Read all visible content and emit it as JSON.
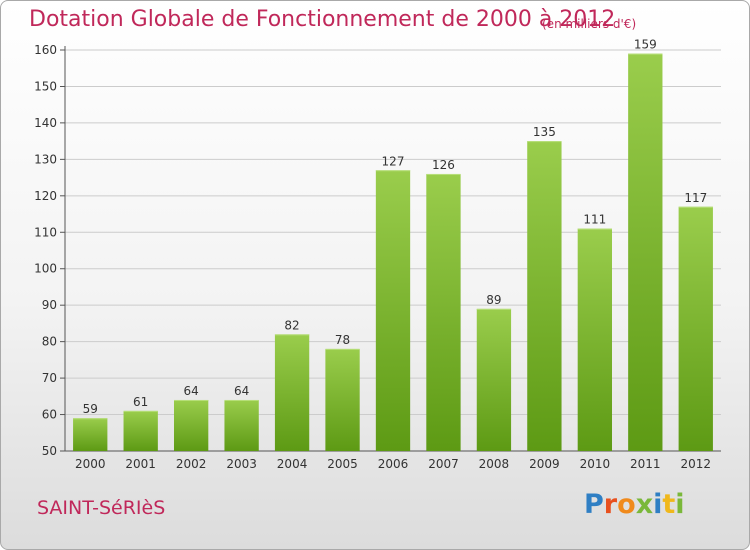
{
  "title": "Dotation Globale de Fonctionnement de 2000 à 2012",
  "unit_note": "(en milliers d'€)",
  "commune": "SAINT-SéRIèS",
  "logo": {
    "text": "Proxiti",
    "letter_colors": [
      "#2f7fc4",
      "#e8501e",
      "#f08a1c",
      "#7ab83a",
      "#2f7fc4",
      "#f0b81c",
      "#7ab83a"
    ]
  },
  "colors": {
    "title": "#c0285a",
    "bar_top": "#9acd4c",
    "bar_bottom": "#5d9a14",
    "grid": "#cccccc",
    "text": "#333333"
  },
  "chart_data": {
    "type": "bar",
    "title": "Dotation Globale de Fonctionnement de 2000 à 2012",
    "xlabel": "",
    "ylabel": "",
    "categories": [
      "2000",
      "2001",
      "2002",
      "2003",
      "2004",
      "2005",
      "2006",
      "2007",
      "2008",
      "2009",
      "2010",
      "2011",
      "2012"
    ],
    "values": [
      59,
      61,
      64,
      64,
      82,
      78,
      127,
      126,
      89,
      135,
      111,
      159,
      117
    ],
    "ylim": [
      50,
      160
    ],
    "yticks": [
      50,
      60,
      70,
      80,
      90,
      100,
      110,
      120,
      130,
      140,
      150,
      160
    ],
    "grid": true,
    "legend": "none"
  }
}
